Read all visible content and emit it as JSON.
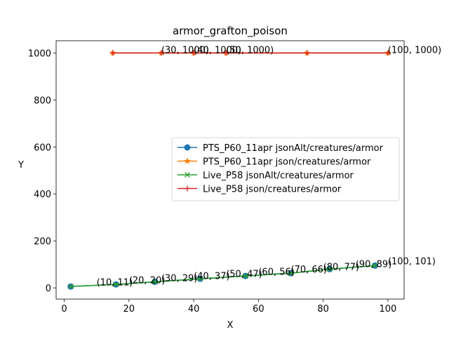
{
  "chart_data": {
    "type": "line",
    "title": "armor_grafton_poison",
    "xlabel": "X",
    "ylabel": "Y",
    "xlim": [
      -2.5,
      105
    ],
    "ylim": [
      -47.5,
      1052
    ],
    "x_ticks": [
      0,
      20,
      40,
      60,
      80,
      100
    ],
    "y_ticks": [
      0,
      200,
      400,
      600,
      800,
      1000
    ],
    "grid": false,
    "legend_position": "center-right",
    "series": [
      {
        "name": "PTS_P60_11apr jsonAlt/creatures/armor",
        "color": "#1f77b4",
        "marker": "circle",
        "x": [
          2,
          16,
          28,
          42,
          56,
          70,
          82,
          96
        ],
        "y": [
          6,
          15,
          26,
          39,
          51,
          63,
          80,
          95
        ]
      },
      {
        "name": "PTS_P60_11apr json/creatures/armor",
        "color": "#ff7f0e",
        "marker": "star",
        "x": [
          15,
          30,
          40,
          50,
          75,
          100
        ],
        "y": [
          1000,
          1000,
          1000,
          1000,
          1000,
          1000
        ]
      },
      {
        "name": "Live_P58 jsonAlt/creatures/armor",
        "color": "#2ca02c",
        "marker": "x",
        "x": [
          2,
          16,
          28,
          42,
          56,
          70,
          82,
          96
        ],
        "y": [
          6,
          15,
          26,
          39,
          51,
          63,
          80,
          95
        ]
      },
      {
        "name": "Live_P58 json/creatures/armor",
        "color": "#d62728",
        "marker": "plus",
        "x": [
          15,
          30,
          40,
          50,
          75,
          100
        ],
        "y": [
          1000,
          1000,
          1000,
          1000,
          1000,
          1000
        ]
      }
    ],
    "annotations": [
      {
        "text": "(10, 11)",
        "x": 10,
        "y": 11
      },
      {
        "text": "(20, 20)",
        "x": 20,
        "y": 20
      },
      {
        "text": "(30, 29)",
        "x": 30,
        "y": 29
      },
      {
        "text": "(40, 37)",
        "x": 40,
        "y": 37
      },
      {
        "text": "(50, 47)",
        "x": 50,
        "y": 47
      },
      {
        "text": "(60, 56)",
        "x": 60,
        "y": 56
      },
      {
        "text": "(70, 66)",
        "x": 70,
        "y": 66
      },
      {
        "text": "(80, 77)",
        "x": 80,
        "y": 77
      },
      {
        "text": "(90, 89)",
        "x": 90,
        "y": 89
      },
      {
        "text": "(100, 101)",
        "x": 100,
        "y": 101
      },
      {
        "text": "(30, 1000)",
        "x": 30,
        "y": 1000
      },
      {
        "text": "(40, 1000)",
        "x": 40,
        "y": 1000
      },
      {
        "text": "(50, 1000)",
        "x": 50,
        "y": 1000
      },
      {
        "text": "(100, 1000)",
        "x": 100,
        "y": 1000
      }
    ]
  }
}
